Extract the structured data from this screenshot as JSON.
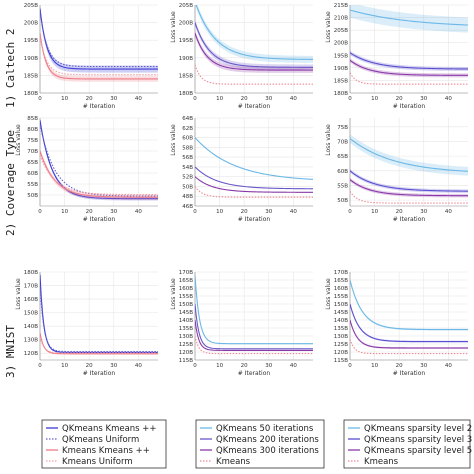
{
  "row_labels": [
    "1) Caltech 2",
    "2) Coverage Type",
    "3) MNIST"
  ],
  "legends": [
    {
      "entries": [
        {
          "label": "QKmeans Kmeans ++",
          "color": "#3b3bd6",
          "style": "solid"
        },
        {
          "label": "QKmeans Uniform",
          "color": "#6060cc",
          "style": "dotted"
        },
        {
          "label": "Kmeans Kmeans ++",
          "color": "#ee7a86",
          "style": "solid"
        },
        {
          "label": "Kmeans Uniform",
          "color": "#f2a0a8",
          "style": "dotted"
        }
      ]
    },
    {
      "entries": [
        {
          "label": "QKmeans 50 iterations",
          "color": "#6bb8e8",
          "style": "solid"
        },
        {
          "label": "QKmeans 200 iterations",
          "color": "#6a57c8",
          "style": "solid"
        },
        {
          "label": "QKmeans 300 iterations",
          "color": "#8a3aa8",
          "style": "solid"
        },
        {
          "label": "Kmeans",
          "color": "#f08a94",
          "style": "dotted"
        }
      ]
    },
    {
      "entries": [
        {
          "label": "QKmeans sparsity level 2",
          "color": "#6bb8e8",
          "style": "solid"
        },
        {
          "label": "QKmeans sparsity level 3",
          "color": "#5a4fd0",
          "style": "solid"
        },
        {
          "label": "QKmeans sparsity level 5",
          "color": "#8a3aa8",
          "style": "solid"
        },
        {
          "label": "Kmeans",
          "color": "#f08a94",
          "style": "dotted"
        }
      ]
    }
  ],
  "chart_data": [
    {
      "type": "line",
      "xlabel": "# Iteration",
      "ylabel": "",
      "xlim": [
        0,
        48
      ],
      "ylim": [
        180,
        205
      ],
      "yticks": [
        "180B",
        "185B",
        "190B",
        "195B",
        "200B",
        "205B"
      ],
      "xticks": [
        "0",
        "10",
        "20",
        "30",
        "40"
      ],
      "series": [
        {
          "color": "#3b3bd6",
          "style": "solid",
          "band": 1.0,
          "start": 204,
          "end": 186.8,
          "tau": 2.8
        },
        {
          "color": "#6060cc",
          "style": "dotted",
          "band": 0,
          "start": 203,
          "end": 187.5,
          "tau": 3.0
        },
        {
          "color": "#ee7a86",
          "style": "solid",
          "band": 0.8,
          "start": 197,
          "end": 184.0,
          "tau": 2.5
        },
        {
          "color": "#f2a0a8",
          "style": "dotted",
          "band": 0,
          "start": 196,
          "end": 185.2,
          "tau": 2.7
        }
      ]
    },
    {
      "type": "line",
      "xlabel": "# Iteration",
      "ylabel": "Loss value",
      "xlim": [
        0,
        48
      ],
      "ylim": [
        180,
        205
      ],
      "yticks": [
        "180B",
        "185B",
        "190B",
        "195B",
        "200B",
        "205B"
      ],
      "xticks": [
        "0",
        "10",
        "20",
        "30",
        "40"
      ],
      "series": [
        {
          "color": "#6bb8e8",
          "style": "solid",
          "band": 1.0,
          "start": 206,
          "end": 189.5,
          "tau": 8
        },
        {
          "color": "#6a57c8",
          "style": "solid",
          "band": 0.8,
          "start": 200,
          "end": 187.3,
          "tau": 6
        },
        {
          "color": "#8a3aa8",
          "style": "solid",
          "band": 0.8,
          "start": 197,
          "end": 186.5,
          "tau": 5
        },
        {
          "color": "#f08a94",
          "style": "dotted",
          "band": 0,
          "start": 188,
          "end": 182.5,
          "tau": 2.5
        }
      ]
    },
    {
      "type": "line",
      "xlabel": "# Iteration",
      "ylabel": "Loss value",
      "xlim": [
        0,
        48
      ],
      "ylim": [
        180,
        215
      ],
      "yticks": [
        "180B",
        "185B",
        "190B",
        "195B",
        "200B",
        "205B",
        "210B",
        "215B"
      ],
      "xticks": [
        "0",
        "10",
        "20",
        "30",
        "40"
      ],
      "series": [
        {
          "color": "#6bb8e8",
          "style": "solid",
          "band": 3.0,
          "start": 213,
          "end": 206,
          "tau": 25
        },
        {
          "color": "#5a4fd0",
          "style": "solid",
          "band": 0.8,
          "start": 196,
          "end": 189.5,
          "tau": 10
        },
        {
          "color": "#8a3aa8",
          "style": "solid",
          "band": 0.8,
          "start": 193,
          "end": 187.0,
          "tau": 8
        },
        {
          "color": "#f08a94",
          "style": "dotted",
          "band": 0,
          "start": 188,
          "end": 183.5,
          "tau": 2.5
        }
      ]
    },
    {
      "type": "line",
      "xlabel": "# Iteration",
      "ylabel": "Loss value",
      "xlim": [
        0,
        48
      ],
      "ylim": [
        45,
        85
      ],
      "yticks": [
        "50B",
        "55B",
        "60B",
        "65B",
        "70B",
        "75B",
        "80B",
        "85B"
      ],
      "xticks": [
        "0",
        "10",
        "20",
        "30",
        "40"
      ],
      "series": [
        {
          "color": "#3b3bd6",
          "style": "solid",
          "band": 0.8,
          "start": 84,
          "end": 48.3,
          "tau": 5
        },
        {
          "color": "#6060cc",
          "style": "dotted",
          "band": 0,
          "start": 82,
          "end": 49.5,
          "tau": 6
        },
        {
          "color": "#ee7a86",
          "style": "solid",
          "band": 1.2,
          "start": 70,
          "end": 49.0,
          "tau": 6
        },
        {
          "color": "#f2a0a8",
          "style": "dotted",
          "band": 0,
          "start": 68,
          "end": 50.2,
          "tau": 6
        }
      ]
    },
    {
      "type": "line",
      "xlabel": "# Iteration",
      "ylabel": "Loss value",
      "xlim": [
        0,
        48
      ],
      "ylim": [
        46,
        64
      ],
      "yticks": [
        "46B",
        "48B",
        "50B",
        "52B",
        "54B",
        "56B",
        "58B",
        "60B",
        "62B",
        "64B"
      ],
      "xticks": [
        "0",
        "10",
        "20",
        "30",
        "40"
      ],
      "series": [
        {
          "color": "#6bb8e8",
          "style": "solid",
          "band": 0,
          "start": 60,
          "end": 51.0,
          "tau": 16
        },
        {
          "color": "#6a57c8",
          "style": "solid",
          "band": 0,
          "start": 54,
          "end": 49.5,
          "tau": 9
        },
        {
          "color": "#8a3aa8",
          "style": "solid",
          "band": 0,
          "start": 52,
          "end": 48.8,
          "tau": 7
        },
        {
          "color": "#f08a94",
          "style": "dotted",
          "band": 0,
          "start": 50,
          "end": 47.8,
          "tau": 3
        }
      ]
    },
    {
      "type": "line",
      "xlabel": "# Iteration",
      "ylabel": "Loss value",
      "xlim": [
        0,
        48
      ],
      "ylim": [
        48,
        78
      ],
      "yticks": [
        "50B",
        "55B",
        "60B",
        "65B",
        "70B",
        "75B"
      ],
      "xticks": [
        "0",
        "10",
        "20",
        "30",
        "40"
      ],
      "series": [
        {
          "color": "#6bb8e8",
          "style": "solid",
          "band": 1.5,
          "start": 71,
          "end": 59.0,
          "tau": 18
        },
        {
          "color": "#5a4fd0",
          "style": "solid",
          "band": 0.6,
          "start": 60,
          "end": 53.0,
          "tau": 10
        },
        {
          "color": "#8a3aa8",
          "style": "solid",
          "band": 0.6,
          "start": 57,
          "end": 51.5,
          "tau": 8
        },
        {
          "color": "#f08a94",
          "style": "dotted",
          "band": 0,
          "start": 53,
          "end": 49.0,
          "tau": 3
        }
      ]
    },
    {
      "type": "line",
      "xlabel": "# Iteration",
      "ylabel": "Loss value",
      "xlim": [
        0,
        48
      ],
      "ylim": [
        115,
        180
      ],
      "yticks": [
        "120B",
        "130B",
        "140B",
        "150B",
        "160B",
        "170B",
        "180B"
      ],
      "xticks": [
        "0",
        "10",
        "20",
        "30",
        "40"
      ],
      "series": [
        {
          "color": "#3b3bd6",
          "style": "solid",
          "band": 0.6,
          "start": 178,
          "end": 120.6,
          "tau": 1.5
        },
        {
          "color": "#6060cc",
          "style": "dotted",
          "band": 0,
          "start": 170,
          "end": 121.2,
          "tau": 1.6
        },
        {
          "color": "#ee7a86",
          "style": "solid",
          "band": 0.6,
          "start": 135,
          "end": 119.6,
          "tau": 1.5
        },
        {
          "color": "#f2a0a8",
          "style": "dotted",
          "band": 0,
          "start": 132,
          "end": 120.2,
          "tau": 1.6
        }
      ]
    },
    {
      "type": "line",
      "xlabel": "# Iteration",
      "ylabel": "Loss value",
      "xlim": [
        0,
        48
      ],
      "ylim": [
        115,
        170
      ],
      "yticks": [
        "115B",
        "120B",
        "125B",
        "130B",
        "135B",
        "140B",
        "145B",
        "150B",
        "155B",
        "160B",
        "165B",
        "170B"
      ],
      "xticks": [
        "0",
        "10",
        "20",
        "30",
        "40"
      ],
      "series": [
        {
          "color": "#6bb8e8",
          "style": "solid",
          "band": 0,
          "start": 168,
          "end": 125.2,
          "tau": 1.8
        },
        {
          "color": "#6a57c8",
          "style": "solid",
          "band": 0,
          "start": 150,
          "end": 122.0,
          "tau": 1.6
        },
        {
          "color": "#8a3aa8",
          "style": "solid",
          "band": 0,
          "start": 140,
          "end": 121.0,
          "tau": 1.5
        },
        {
          "color": "#f08a94",
          "style": "dotted",
          "band": 0,
          "start": 130,
          "end": 119.0,
          "tau": 1.5
        }
      ]
    },
    {
      "type": "line",
      "xlabel": "# Iteration",
      "ylabel": "Loss value",
      "xlim": [
        0,
        48
      ],
      "ylim": [
        115,
        170
      ],
      "yticks": [
        "115B",
        "120B",
        "125B",
        "130B",
        "135B",
        "140B",
        "145B",
        "150B",
        "155B",
        "160B",
        "165B",
        "170B"
      ],
      "xticks": [
        "0",
        "10",
        "20",
        "30",
        "40"
      ],
      "series": [
        {
          "color": "#6bb8e8",
          "style": "solid",
          "band": 0.6,
          "start": 165,
          "end": 134.0,
          "tau": 5
        },
        {
          "color": "#5a4fd0",
          "style": "solid",
          "band": 0.6,
          "start": 150,
          "end": 126.5,
          "tau": 4
        },
        {
          "color": "#8a3aa8",
          "style": "solid",
          "band": 0.6,
          "start": 140,
          "end": 122.5,
          "tau": 3
        },
        {
          "color": "#f08a94",
          "style": "dotted",
          "band": 0,
          "start": 128,
          "end": 119.0,
          "tau": 1.8
        }
      ]
    }
  ]
}
